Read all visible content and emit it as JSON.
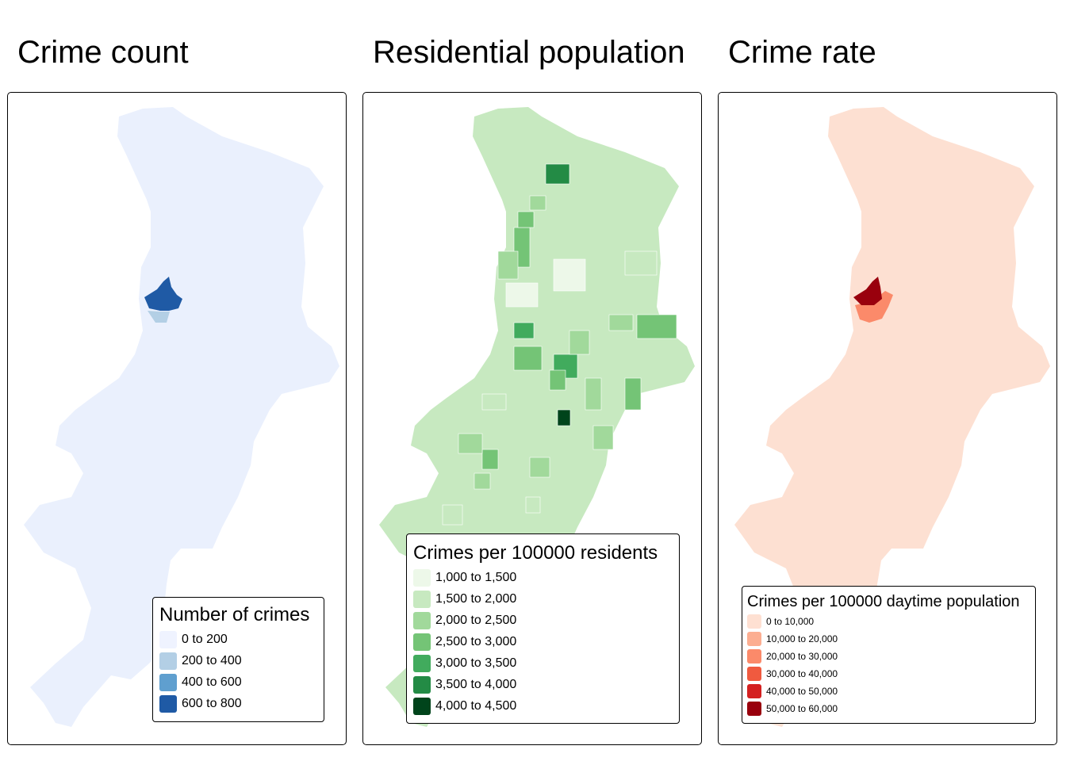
{
  "panels": [
    {
      "title": "Crime count",
      "legend": {
        "title": "Number of crimes",
        "items": [
          {
            "label": "0 to 200",
            "color": "#eff3ff"
          },
          {
            "label": "200 to 400",
            "color": "#b3cfe5"
          },
          {
            "label": "400 to 600",
            "color": "#5f9fcf"
          },
          {
            "label": "600 to 800",
            "color": "#1f5aa5"
          }
        ]
      },
      "base_color": "#eaf0fd",
      "hotspot_colors": [
        "#1f5aa5",
        "#b3cfe5"
      ]
    },
    {
      "title": "Residential population",
      "legend": {
        "title": "Crimes per 100000 residents",
        "items": [
          {
            "label": "1,000 to 1,500",
            "color": "#edf8e9"
          },
          {
            "label": "1,500 to 2,000",
            "color": "#c7e9c0"
          },
          {
            "label": "2,000 to 2,500",
            "color": "#a1d99b"
          },
          {
            "label": "2,500 to 3,000",
            "color": "#74c476"
          },
          {
            "label": "3,000 to 3,500",
            "color": "#41ab5d"
          },
          {
            "label": "3,500 to 4,000",
            "color": "#238b45"
          },
          {
            "label": "4,000 to 4,500",
            "color": "#00441b"
          }
        ]
      },
      "base_color": "#c7e9c0"
    },
    {
      "title": "Crime rate",
      "legend": {
        "title": "Crimes per 100000 daytime population",
        "items": [
          {
            "label": "0 to 10,000",
            "color": "#fee0d2"
          },
          {
            "label": "10,000 to 20,000",
            "color": "#fcae91"
          },
          {
            "label": "20,000 to 30,000",
            "color": "#fb8a6a"
          },
          {
            "label": "30,000 to 40,000",
            "color": "#f05a3f"
          },
          {
            "label": "40,000 to 50,000",
            "color": "#d42020"
          },
          {
            "label": "50,000 to 60,000",
            "color": "#99000d"
          }
        ]
      },
      "base_color": "#fde0d2",
      "hotspot_colors": [
        "#99000d",
        "#fb8a6a"
      ]
    }
  ]
}
